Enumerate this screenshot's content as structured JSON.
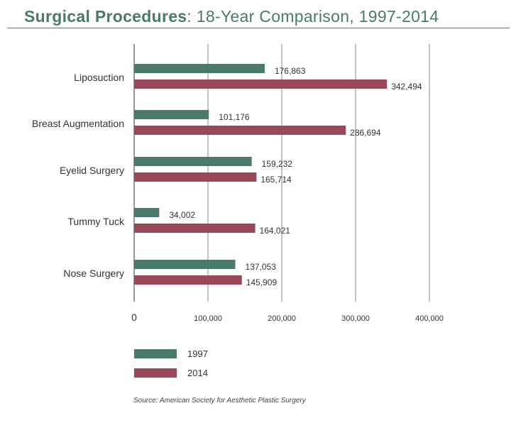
{
  "header": {
    "title_bold": "Surgical Procedures",
    "title_rest": ": 18-Year Comparison, 1997-2014"
  },
  "chart_data": {
    "type": "bar",
    "orientation": "horizontal",
    "categories": [
      "Liposuction",
      "Breast Augmentation",
      "Eyelid Surgery",
      "Tummy Tuck",
      "Nose Surgery"
    ],
    "series": [
      {
        "name": "1997",
        "color": "#4a7a6e",
        "values": [
          176863,
          101176,
          159232,
          34002,
          137053
        ],
        "labels": [
          "176,863",
          "101,176",
          "159,232",
          "34,002",
          "137,053"
        ]
      },
      {
        "name": "2014",
        "color": "#9a4858",
        "values": [
          342494,
          286694,
          165714,
          164021,
          145909
        ],
        "labels": [
          "342,494",
          "286,694",
          "165,714",
          "164,021",
          "145,909"
        ]
      }
    ],
    "xlim": [
      0,
      400000
    ],
    "xticks": [
      0,
      100000,
      200000,
      300000,
      400000
    ],
    "xtick_labels": [
      "0",
      "100,000",
      "200,000",
      "300,000",
      "400,000"
    ],
    "grid": "vertical",
    "legend_position": "bottom-left"
  },
  "source": "Source: American Society for Aesthetic Plastic Surgery"
}
